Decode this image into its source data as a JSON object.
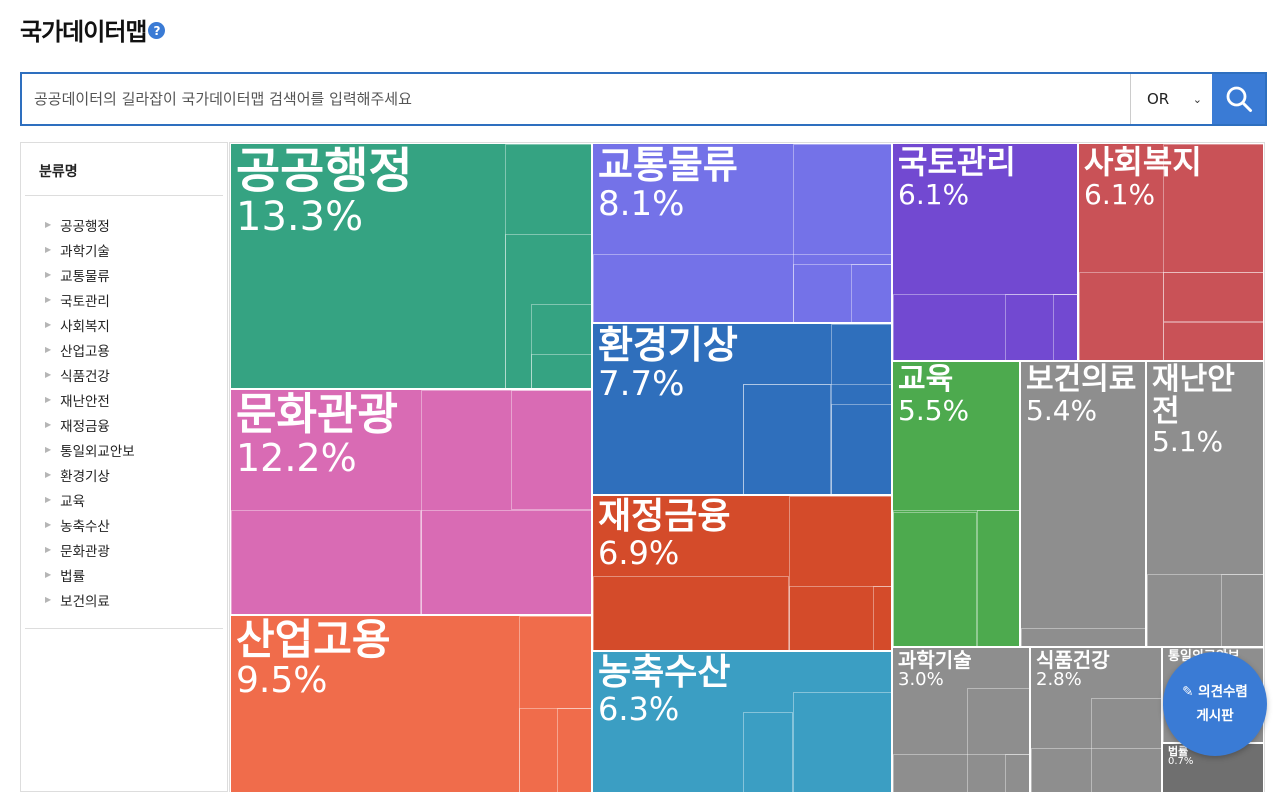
{
  "page": {
    "title": "국가데이터맵",
    "help_icon": "question-circle-icon"
  },
  "search": {
    "placeholder": "공공데이터의 길라잡이 국가데이터맵 검색어를 입력해주세요",
    "operator": "OR",
    "button_icon": "search-icon"
  },
  "sidebar": {
    "heading": "분류명",
    "items": [
      "공공행정",
      "과학기술",
      "교통물류",
      "국토관리",
      "사회복지",
      "산업고용",
      "식품건강",
      "재난안전",
      "재정금융",
      "통일외교안보",
      "환경기상",
      "교육",
      "농축수산",
      "문화관광",
      "법률",
      "보건의료"
    ]
  },
  "treemap": {
    "tiles": [
      {
        "label": "공공행정",
        "pct": "13.3%",
        "color": "#35a382"
      },
      {
        "label": "문화관광",
        "pct": "12.2%",
        "color": "#d96bb4"
      },
      {
        "label": "산업고용",
        "pct": "9.5%",
        "color": "#f06c4b"
      },
      {
        "label": "교통물류",
        "pct": "8.1%",
        "color": "#7472e8"
      },
      {
        "label": "환경기상",
        "pct": "7.7%",
        "color": "#2f6fbc"
      },
      {
        "label": "재정금융",
        "pct": "6.9%",
        "color": "#d44b2a"
      },
      {
        "label": "농축수산",
        "pct": "6.3%",
        "color": "#3b9ec3"
      },
      {
        "label": "국토관리",
        "pct": "6.1%",
        "color": "#7249d1"
      },
      {
        "label": "사회복지",
        "pct": "6.1%",
        "color": "#c95257"
      },
      {
        "label": "교육",
        "pct": "5.5%",
        "color": "#4daa4e"
      },
      {
        "label": "보건의료",
        "pct": "5.4%",
        "color": "#8e8e8e"
      },
      {
        "label": "재난안전",
        "pct": "5.1%",
        "color": "#8e8e8e"
      },
      {
        "label": "과학기술",
        "pct": "3.0%",
        "color": "#8e8e8e"
      },
      {
        "label": "식품건강",
        "pct": "2.8%",
        "color": "#8e8e8e"
      },
      {
        "label": "통일외교안보",
        "pct": "",
        "color": "#8e8e8e"
      },
      {
        "label": "법률",
        "pct": "0.7%",
        "color": "#6f6f6f"
      }
    ]
  },
  "fab": {
    "icon": "pencil-icon",
    "line1": "의견수렴",
    "line2": "게시판"
  }
}
